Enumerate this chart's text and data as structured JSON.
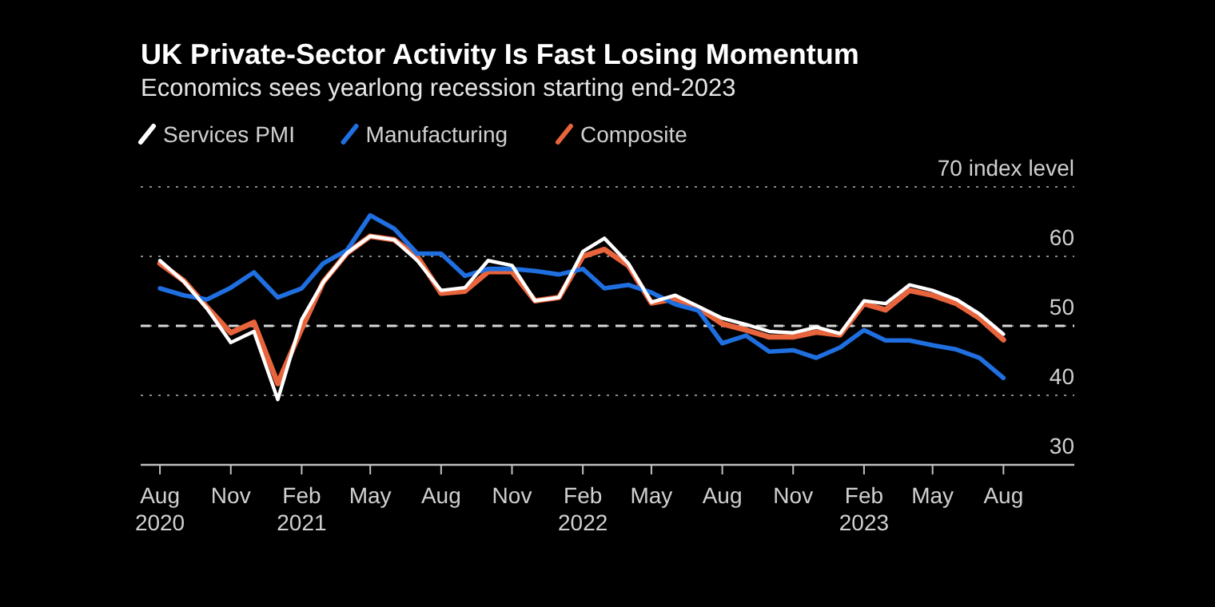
{
  "chart_data": {
    "type": "line",
    "title": "UK Private-Sector Activity Is Fast Losing Momentum",
    "subtitle": "Economics sees yearlong recession starting end-2023",
    "x": [
      "2020-08",
      "2020-09",
      "2020-10",
      "2020-11",
      "2020-12",
      "2021-01",
      "2021-02",
      "2021-03",
      "2021-04",
      "2021-05",
      "2021-06",
      "2021-07",
      "2021-08",
      "2021-09",
      "2021-10",
      "2021-11",
      "2021-12",
      "2022-01",
      "2022-02",
      "2022-03",
      "2022-04",
      "2022-05",
      "2022-06",
      "2022-07",
      "2022-08",
      "2022-09",
      "2022-10",
      "2022-11",
      "2022-12",
      "2023-01",
      "2023-02",
      "2023-03",
      "2023-04",
      "2023-05",
      "2023-06",
      "2023-07",
      "2023-08"
    ],
    "series": [
      {
        "name": "Services PMI",
        "color": "#ffffff",
        "values": [
          59.4,
          56.4,
          52.5,
          47.6,
          49.2,
          39.4,
          50.9,
          56.3,
          60.5,
          62.9,
          62.4,
          59.4,
          55.1,
          55.5,
          59.4,
          58.7,
          53.6,
          54.1,
          60.7,
          62.6,
          59.0,
          53.4,
          54.4,
          52.8,
          51.1,
          50.2,
          49.2,
          49.0,
          49.8,
          48.9,
          53.6,
          53.2,
          55.9,
          55.1,
          53.8,
          51.7,
          48.8
        ]
      },
      {
        "name": "Manufacturing",
        "color": "#1f6fe0",
        "values": [
          55.4,
          54.4,
          53.8,
          55.5,
          57.7,
          54.1,
          55.4,
          59.0,
          60.9,
          65.9,
          64.0,
          60.4,
          60.4,
          57.2,
          58.2,
          58.2,
          57.9,
          57.4,
          58.2,
          55.4,
          55.9,
          54.8,
          53.1,
          52.2,
          47.5,
          48.6,
          46.3,
          46.5,
          45.4,
          46.9,
          49.4,
          47.9,
          47.9,
          47.2,
          46.6,
          45.4,
          42.5
        ]
      },
      {
        "name": "Composite",
        "color": "#e8643c",
        "values": [
          59.0,
          56.5,
          52.7,
          49.0,
          50.5,
          41.7,
          49.6,
          56.3,
          60.5,
          62.9,
          62.4,
          60.0,
          54.7,
          55.0,
          57.8,
          57.8,
          53.6,
          54.1,
          60.0,
          61.0,
          58.7,
          53.3,
          53.9,
          52.6,
          50.3,
          49.4,
          48.4,
          48.4,
          49.1,
          48.7,
          53.2,
          52.3,
          55.1,
          54.4,
          53.2,
          51.1,
          48.0
        ]
      }
    ],
    "xlim": [
      "2020-07-07",
      "2023-11-01"
    ],
    "xticks": [
      {
        "value": "2020-08",
        "label": "Aug\n2020"
      },
      {
        "value": "2020-11",
        "label": "Nov"
      },
      {
        "value": "2021-02",
        "label": "Feb\n2021"
      },
      {
        "value": "2021-05",
        "label": "May"
      },
      {
        "value": "2021-08",
        "label": "Aug"
      },
      {
        "value": "2021-11",
        "label": "Nov"
      },
      {
        "value": "2022-02",
        "label": "Feb\n2022"
      },
      {
        "value": "2022-05",
        "label": "May"
      },
      {
        "value": "2022-08",
        "label": "Aug"
      },
      {
        "value": "2022-11",
        "label": "Nov"
      },
      {
        "value": "2023-02",
        "label": "Feb\n2023"
      },
      {
        "value": "2023-05",
        "label": "May"
      },
      {
        "value": "2023-08",
        "label": "Aug"
      }
    ],
    "ylim": [
      30,
      70
    ],
    "yticks": [
      30,
      40,
      50,
      60,
      {
        "value": 70,
        "label": "70 index level"
      }
    ],
    "ref_lines": [
      {
        "axis": "y",
        "value": 50,
        "label": null,
        "color": "#d9d9d9",
        "line_style": "dashed"
      }
    ],
    "grid": "y",
    "legend": "top left",
    "marker": "none",
    "line_style": "solid"
  }
}
